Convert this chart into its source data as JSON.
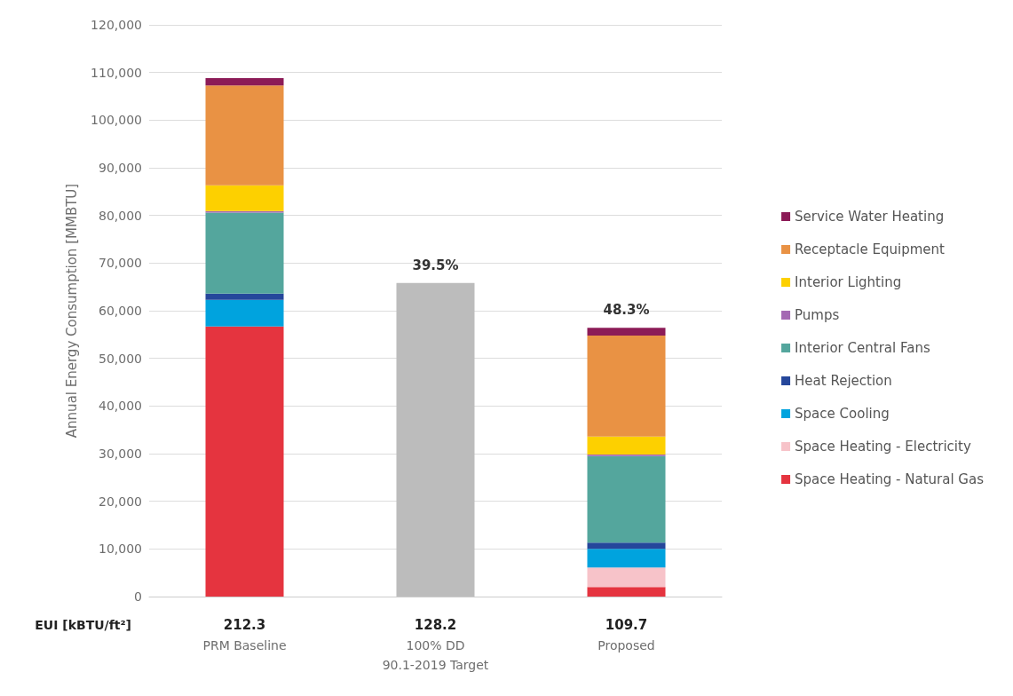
{
  "chart_data": {
    "type": "bar",
    "stacked": true,
    "ylabel": "Annual Energy Consumption [MMBTU]",
    "categories": [
      "PRM Baseline",
      "100% DD\n90.1-2019 Target",
      "Proposed"
    ],
    "series": [
      {
        "name": "Space Heating - Natural Gas",
        "color": "#e5343f",
        "values": [
          56700,
          null,
          2000
        ]
      },
      {
        "name": "Space Heating - Electricity",
        "color": "#f7c3c9",
        "values": [
          0,
          null,
          4100
        ]
      },
      {
        "name": "Space Cooling",
        "color": "#00a3de",
        "values": [
          5600,
          null,
          3900
        ]
      },
      {
        "name": "Heat Rejection",
        "color": "#25479b",
        "values": [
          1300,
          null,
          1300
        ]
      },
      {
        "name": "Interior Central Fans",
        "color": "#54a69d",
        "values": [
          17000,
          null,
          18200
        ]
      },
      {
        "name": "Pumps",
        "color": "#a469b3",
        "values": [
          300,
          null,
          300
        ]
      },
      {
        "name": "Interior Lighting",
        "color": "#fdd000",
        "values": [
          5400,
          null,
          3800
        ]
      },
      {
        "name": "Receptacle Equipment",
        "color": "#e99244",
        "values": [
          21000,
          null,
          21200
        ]
      },
      {
        "name": "Service Water Heating",
        "color": "#8c1b57",
        "values": [
          1500,
          null,
          1600
        ]
      },
      {
        "color": "#bcbcbc",
        "values": [
          null,
          65800,
          null
        ]
      }
    ],
    "ylim": [
      0,
      120000
    ],
    "yticks": [
      {
        "value": 0,
        "label": "0"
      },
      {
        "value": 10000,
        "label": "10,000"
      },
      {
        "value": 20000,
        "label": "20,000"
      },
      {
        "value": 30000,
        "label": "30,000"
      },
      {
        "value": 40000,
        "label": "40,000"
      },
      {
        "value": 50000,
        "label": "50,000"
      },
      {
        "value": 60000,
        "label": "60,000"
      },
      {
        "value": 70000,
        "label": "70,000"
      },
      {
        "value": 80000,
        "label": "80,000"
      },
      {
        "value": 90000,
        "label": "90,000"
      },
      {
        "value": 100000,
        "label": "100,000"
      },
      {
        "value": 110000,
        "label": "110,000"
      },
      {
        "value": 120000,
        "label": "120,000"
      }
    ],
    "grid": "y",
    "legend": "right",
    "annotations": [
      {
        "text": "39.5%",
        "x": "100% DD\n90.1-2019 Target",
        "y": 65800
      },
      {
        "text": "48.3%",
        "x": "Proposed",
        "y": 56600
      },
      "EUI [kBTU/ft²]",
      "212.3",
      "128.2",
      "109.7"
    ]
  }
}
